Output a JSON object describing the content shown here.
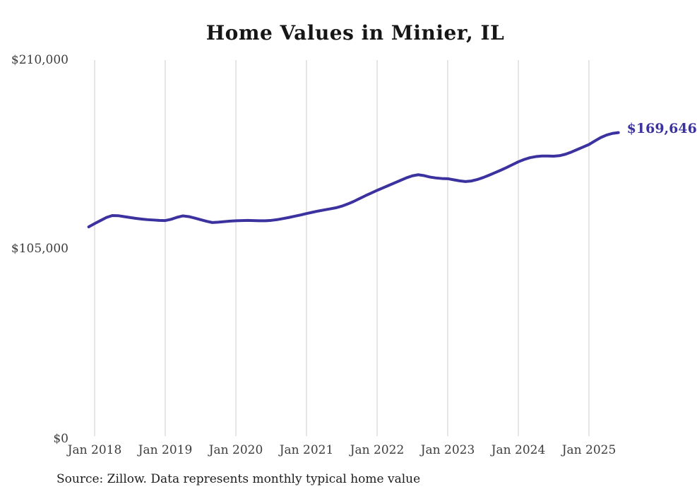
{
  "title": "Home Values in Minier, IL",
  "source": "Source: Zillow. Data represents monthly typical home value",
  "colors": {
    "line": "#3b32a0",
    "grid": "#cccccc",
    "title_text": "#161616",
    "tick_text": "#3d3d3d",
    "source_text": "#1d1d1d",
    "background": "#ffffff"
  },
  "chart_data": {
    "type": "line",
    "title": "Home Values in Minier, IL",
    "unit": "USD",
    "frequency": "monthly",
    "x_start": "Dec 2017",
    "x_end": "Jun 2025",
    "ylim": [
      0,
      210000
    ],
    "grid": "vertical-only",
    "legend": "none",
    "y_ticks": [
      {
        "label": "$0",
        "value": 0
      },
      {
        "label": "$105,000",
        "value": 105000
      },
      {
        "label": "$210,000",
        "value": 210000
      }
    ],
    "x_ticks": [
      {
        "label": "Jan 2018",
        "month_index": 1
      },
      {
        "label": "Jan 2019",
        "month_index": 13
      },
      {
        "label": "Jan 2020",
        "month_index": 25
      },
      {
        "label": "Jan 2021",
        "month_index": 37
      },
      {
        "label": "Jan 2022",
        "month_index": 49
      },
      {
        "label": "Jan 2023",
        "month_index": 61
      },
      {
        "label": "Jan 2024",
        "month_index": 73
      },
      {
        "label": "Jan 2025",
        "month_index": 85
      }
    ],
    "values": [
      117200,
      119000,
      120700,
      122400,
      123500,
      123400,
      122900,
      122400,
      121900,
      121500,
      121200,
      121000,
      120800,
      120700,
      121400,
      122500,
      123300,
      122900,
      122100,
      121200,
      120300,
      119600,
      119800,
      120100,
      120400,
      120600,
      120700,
      120800,
      120700,
      120600,
      120600,
      120800,
      121200,
      121800,
      122400,
      123100,
      123800,
      124600,
      125300,
      126000,
      126600,
      127200,
      127800,
      128700,
      129900,
      131300,
      132900,
      134500,
      136000,
      137500,
      138900,
      140300,
      141700,
      143100,
      144500,
      145600,
      146200,
      145700,
      144900,
      144400,
      144100,
      144000,
      143400,
      142800,
      142400,
      142700,
      143500,
      144600,
      145900,
      147300,
      148700,
      150200,
      151800,
      153400,
      154700,
      155700,
      156300,
      156600,
      156600,
      156500,
      156800,
      157600,
      158800,
      160200,
      161600,
      163000,
      165000,
      166900,
      168300,
      169200,
      169646
    ],
    "latest_value": 169646,
    "end_label": "$169,646"
  }
}
